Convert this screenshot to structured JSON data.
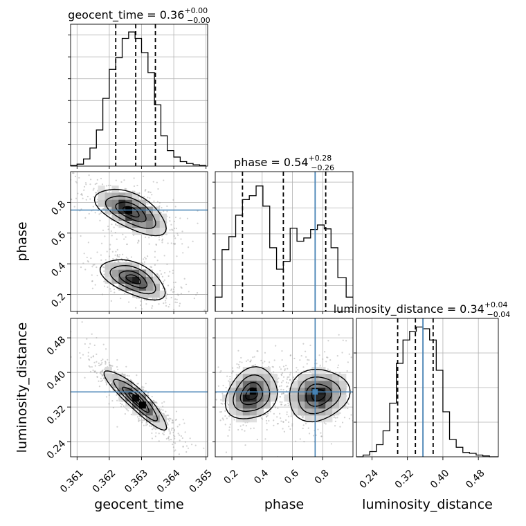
{
  "chart_data": {
    "type": "corner",
    "parameters": [
      "geocent_time",
      "phase",
      "luminosity_distance"
    ],
    "truths": {
      "geocent_time": null,
      "phase": 0.75,
      "luminosity_distance": 0.355
    },
    "colors": {
      "truth": "#4682b4",
      "hist": "#000000",
      "grid": "#b0b0b0",
      "scatter": "#9a9a9a"
    },
    "grid": true,
    "diagonal": [
      {
        "name": "geocent_time",
        "title_main": "geocent_time = 0.36",
        "title_sup": "+0.00",
        "title_sub": "−0.00",
        "xlim": [
          0.3608,
          0.36505
        ],
        "quantiles": [
          0.3622,
          0.36282,
          0.36343
        ],
        "bin_edges": [
          0.3608,
          0.361,
          0.3612,
          0.3614,
          0.3616,
          0.3618,
          0.362,
          0.3622,
          0.3624,
          0.3626,
          0.3628,
          0.363,
          0.3632,
          0.3634,
          0.3636,
          0.3638,
          0.364,
          0.3642,
          0.3644,
          0.3646,
          0.3648,
          0.365
        ],
        "counts": [
          1,
          3,
          11,
          28,
          56,
          105,
          150,
          168,
          198,
          208,
          198,
          176,
          145,
          95,
          47,
          24,
          14,
          7,
          4,
          2,
          1
        ],
        "ymax": 220
      },
      {
        "name": "phase",
        "title_main": "phase = 0.54",
        "title_sup": "+0.28",
        "title_sub": "−0.26",
        "xlim": [
          0.09,
          1.0
        ],
        "quantiles": [
          0.27,
          0.54,
          0.82
        ],
        "bin_edges": [
          0.09,
          0.135,
          0.18,
          0.225,
          0.27,
          0.315,
          0.36,
          0.405,
          0.45,
          0.495,
          0.54,
          0.585,
          0.63,
          0.675,
          0.72,
          0.765,
          0.81,
          0.855,
          0.9,
          0.955,
          1.0
        ],
        "counts": [
          22,
          95,
          115,
          148,
          172,
          178,
          193,
          162,
          98,
          65,
          77,
          128,
          108,
          113,
          126,
          133,
          127,
          98,
          52,
          22
        ],
        "ymax": 215
      },
      {
        "name": "luminosity_distance",
        "title_main": "luminosity_distance = 0.34",
        "title_sup": "+0.04",
        "title_sub": "−0.04",
        "xlim": [
          0.205,
          0.525
        ],
        "quantiles": [
          0.298,
          0.338,
          0.378
        ],
        "bin_edges": [
          0.205,
          0.22,
          0.235,
          0.25,
          0.265,
          0.28,
          0.295,
          0.31,
          0.325,
          0.34,
          0.355,
          0.37,
          0.385,
          0.4,
          0.415,
          0.43,
          0.445,
          0.46,
          0.475,
          0.49,
          0.505,
          0.525
        ],
        "counts": [
          0,
          2,
          6,
          14,
          30,
          62,
          108,
          135,
          145,
          150,
          148,
          135,
          100,
          52,
          20,
          11,
          5,
          4,
          2,
          1,
          0
        ],
        "ymax": 160
      }
    ],
    "pairs": [
      {
        "x": "geocent_time",
        "y": "phase",
        "row": 1,
        "col": 0,
        "xlim": [
          0.3608,
          0.36505
        ],
        "ylim": [
          0.09,
          1.0
        ],
        "blobs": [
          {
            "cx": 0.36268,
            "cy": 0.74,
            "sx": 0.00055,
            "sy": 0.075,
            "rho": -0.6,
            "w": 1.0
          },
          {
            "cx": 0.36275,
            "cy": 0.3,
            "sx": 0.0005,
            "sy": 0.065,
            "rho": -0.55,
            "w": 0.9
          }
        ]
      },
      {
        "x": "geocent_time",
        "y": "luminosity_distance",
        "row": 2,
        "col": 0,
        "xlim": [
          0.3608,
          0.36505
        ],
        "ylim": [
          0.205,
          0.525
        ],
        "blobs": [
          {
            "cx": 0.36283,
            "cy": 0.338,
            "sx": 0.00048,
            "sy": 0.034,
            "rho": -0.9,
            "w": 1.0
          }
        ]
      },
      {
        "x": "phase",
        "y": "luminosity_distance",
        "row": 2,
        "col": 1,
        "xlim": [
          0.09,
          1.0
        ],
        "ylim": [
          0.205,
          0.525
        ],
        "blobs": [
          {
            "cx": 0.33,
            "cy": 0.35,
            "sx": 0.085,
            "sy": 0.03,
            "rho": 0.2,
            "w": 1.0
          },
          {
            "cx": 0.77,
            "cy": 0.348,
            "sx": 0.1,
            "sy": 0.03,
            "rho": 0.1,
            "w": 0.95
          }
        ]
      }
    ],
    "ticks": {
      "geocent_time": {
        "values": [
          0.361,
          0.362,
          0.363,
          0.364,
          0.365
        ],
        "labels": [
          "0.361",
          "0.362",
          "0.363",
          "0.364",
          "0.365"
        ]
      },
      "phase_x": {
        "values": [
          0.2,
          0.4,
          0.6,
          0.8
        ],
        "labels": [
          "0.2",
          "0.4",
          "0.6",
          "0.8"
        ]
      },
      "phase_y": {
        "values": [
          0.2,
          0.4,
          0.6,
          0.8
        ],
        "labels": [
          "0.2",
          "0.4",
          "0.6",
          "0.8"
        ]
      },
      "luminosity_distance": {
        "values": [
          0.24,
          0.32,
          0.4,
          0.48
        ],
        "labels": [
          "0.24",
          "0.32",
          "0.40",
          "0.48"
        ]
      }
    },
    "axis_labels": {
      "x": [
        "geocent_time",
        "phase",
        "luminosity_distance"
      ],
      "y": [
        "phase",
        "luminosity_distance"
      ]
    }
  }
}
